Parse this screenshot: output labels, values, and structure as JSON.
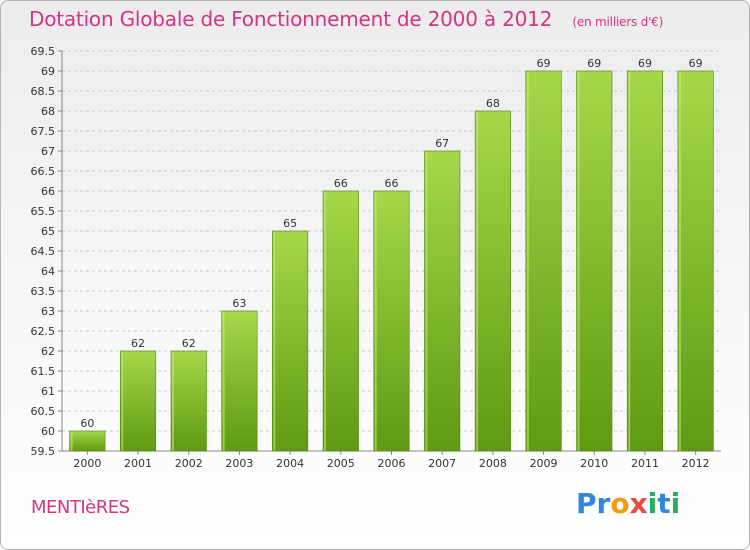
{
  "header": {
    "title": "Dotation Globale de Fonctionnement de 2000 à 2012",
    "unit": "(en milliers d'€)"
  },
  "footer": {
    "commune": "MENTIèRES",
    "logo_text": "Proxiti",
    "logo_letters": [
      {
        "ch": "P",
        "color": "#2e86de"
      },
      {
        "ch": "r",
        "color": "#2e86de"
      },
      {
        "ch": "o",
        "color": "#f39c12"
      },
      {
        "ch": "x",
        "color": "#e74c3c"
      },
      {
        "ch": "i",
        "color": "#27ae60"
      },
      {
        "ch": "t",
        "color": "#2e86de"
      },
      {
        "ch": "i",
        "color": "#27ae60"
      }
    ]
  },
  "colors": {
    "bar_light": "#a6d84a",
    "bar_dark": "#5e9a12",
    "bar_edge": "#4f8410",
    "grid": "#c8c8c8",
    "axis": "#888888",
    "accent": "#d63384"
  },
  "chart_data": {
    "type": "bar",
    "title": "Dotation Globale de Fonctionnement de 2000 à 2012",
    "subtitle": "(en milliers d'€)",
    "categories": [
      "2000",
      "2001",
      "2002",
      "2003",
      "2004",
      "2005",
      "2006",
      "2007",
      "2008",
      "2009",
      "2010",
      "2011",
      "2012"
    ],
    "values": [
      60,
      62,
      62,
      63,
      65,
      66,
      66,
      67,
      68,
      69,
      69,
      69,
      69
    ],
    "ylim": [
      59.5,
      69.5
    ],
    "yticks": [
      "59.5",
      "60",
      "60.5",
      "61",
      "61.5",
      "62",
      "62.5",
      "63",
      "63.5",
      "64",
      "64.5",
      "65",
      "65.5",
      "66",
      "66.5",
      "67",
      "67.5",
      "68",
      "68.5",
      "69",
      "69.5"
    ],
    "grid": true,
    "data_labels": true
  }
}
